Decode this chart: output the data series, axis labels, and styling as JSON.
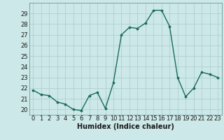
{
  "x": [
    0,
    1,
    2,
    3,
    4,
    5,
    6,
    7,
    8,
    9,
    10,
    11,
    12,
    13,
    14,
    15,
    16,
    17,
    18,
    19,
    20,
    21,
    22,
    23
  ],
  "y": [
    21.8,
    21.4,
    21.3,
    20.7,
    20.5,
    20.0,
    19.9,
    21.3,
    21.6,
    20.1,
    22.5,
    27.0,
    27.7,
    27.6,
    28.1,
    29.3,
    29.3,
    27.8,
    23.0,
    21.2,
    22.0,
    23.5,
    23.3,
    23.0
  ],
  "line_color": "#1a6b5a",
  "marker": "o",
  "marker_size": 2.2,
  "linewidth": 1.0,
  "bg_color": "#cce8e8",
  "grid_color": "#b0cfcf",
  "xlabel": "Humidex (Indice chaleur)",
  "ylim": [
    19.5,
    30.0
  ],
  "xlim": [
    -0.5,
    23.5
  ],
  "yticks": [
    20,
    21,
    22,
    23,
    24,
    25,
    26,
    27,
    28,
    29
  ],
  "xticks": [
    0,
    1,
    2,
    3,
    4,
    5,
    6,
    7,
    8,
    9,
    10,
    11,
    12,
    13,
    14,
    15,
    16,
    17,
    18,
    19,
    20,
    21,
    22,
    23
  ],
  "xlabel_fontsize": 7,
  "tick_fontsize": 6,
  "tick_color": "#1a1a1a",
  "spine_color": "#5a8a8a"
}
